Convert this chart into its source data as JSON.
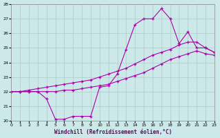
{
  "xlabel": "Windchill (Refroidissement éolien,°C)",
  "bg_color": "#cce8e8",
  "grid_color": "#aacccc",
  "line_color": "#aa00aa",
  "xlim": [
    0,
    23
  ],
  "ylim": [
    20,
    28
  ],
  "xticks": [
    0,
    1,
    2,
    3,
    4,
    5,
    6,
    7,
    8,
    9,
    10,
    11,
    12,
    13,
    14,
    15,
    16,
    17,
    18,
    19,
    20,
    21,
    22,
    23
  ],
  "yticks": [
    20,
    21,
    22,
    23,
    24,
    25,
    26,
    27,
    28
  ],
  "line1_x": [
    0,
    1,
    2,
    3,
    4,
    5,
    6,
    7,
    8,
    9,
    10,
    11,
    12,
    13,
    14,
    15,
    16,
    17,
    18,
    19,
    20,
    21,
    22,
    23
  ],
  "line1_y": [
    22.0,
    22.0,
    22.0,
    22.0,
    21.5,
    20.1,
    20.1,
    20.3,
    20.3,
    20.3,
    22.3,
    22.4,
    23.2,
    24.9,
    26.6,
    27.0,
    27.0,
    27.7,
    27.0,
    25.3,
    26.1,
    25.0,
    25.0,
    24.7
  ],
  "line2_x": [
    0,
    1,
    2,
    3,
    4,
    5,
    6,
    7,
    8,
    9,
    10,
    11,
    12,
    13,
    14,
    15,
    16,
    17,
    18,
    19,
    20,
    21,
    22,
    23
  ],
  "line2_y": [
    22.0,
    22.0,
    22.1,
    22.2,
    22.3,
    22.4,
    22.5,
    22.6,
    22.7,
    22.8,
    23.0,
    23.2,
    23.4,
    23.6,
    23.9,
    24.2,
    24.5,
    24.7,
    24.9,
    25.2,
    25.4,
    25.4,
    25.0,
    24.7
  ],
  "line3_x": [
    0,
    1,
    2,
    3,
    4,
    5,
    6,
    7,
    8,
    9,
    10,
    11,
    12,
    13,
    14,
    15,
    16,
    17,
    18,
    19,
    20,
    21,
    22,
    23
  ],
  "line3_y": [
    22.0,
    22.0,
    22.0,
    22.0,
    22.0,
    22.0,
    22.1,
    22.1,
    22.2,
    22.3,
    22.4,
    22.5,
    22.7,
    22.9,
    23.1,
    23.3,
    23.6,
    23.9,
    24.2,
    24.4,
    24.6,
    24.8,
    24.6,
    24.5
  ]
}
